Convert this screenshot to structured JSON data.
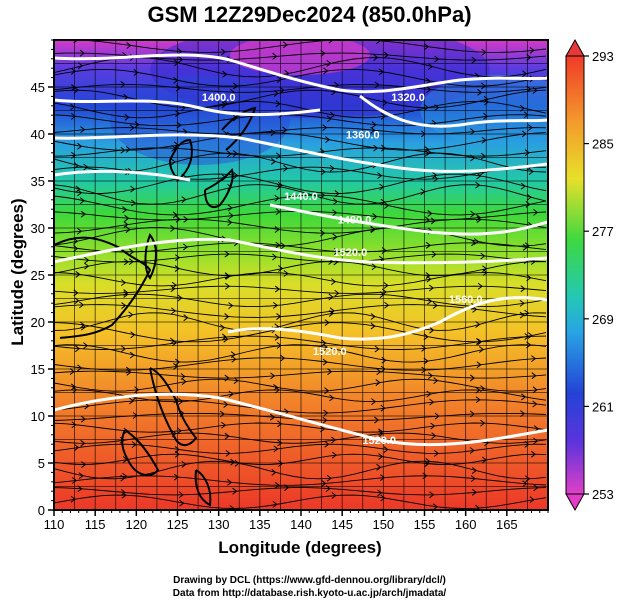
{
  "title": "GSM 12Z29Dec2024 (850.0hPa)",
  "xlabel": "Longitude (degrees)",
  "ylabel": "Latitude  (degrees)",
  "credit_line1": "Drawing by DCL (https://www.gfd-dennou.org/library/dcl/)",
  "credit_line2": "Data from http://database.rish.kyoto-u.ac.jp/arch/jmadata/",
  "x_ticks": [
    "110",
    "115",
    "120",
    "125",
    "130",
    "135",
    "140",
    "145",
    "150",
    "155",
    "160",
    "165"
  ],
  "y_ticks": [
    "0",
    "5",
    "10",
    "15",
    "20",
    "25",
    "30",
    "35",
    "40",
    "45"
  ],
  "xlim": [
    110,
    170
  ],
  "ylim": [
    0,
    50
  ],
  "colorbar": {
    "labels": [
      "293",
      "285",
      "277",
      "269",
      "261",
      "253"
    ],
    "range": [
      253,
      293
    ]
  },
  "contour_labels": [
    {
      "text": "1400.0",
      "lon": 130,
      "lat": 43.5
    },
    {
      "text": "1320.0",
      "lon": 153,
      "lat": 43.5
    },
    {
      "text": "1360.0",
      "lon": 147.5,
      "lat": 39.5
    },
    {
      "text": "1440.0",
      "lon": 140,
      "lat": 33
    },
    {
      "text": "1480.0",
      "lon": 146.5,
      "lat": 30.5
    },
    {
      "text": "1520.0",
      "lon": 146,
      "lat": 27
    },
    {
      "text": "1520.0",
      "lon": 143.5,
      "lat": 16.5
    },
    {
      "text": "1520.0",
      "lon": 149.5,
      "lat": 7
    },
    {
      "text": "1560.0",
      "lon": 160,
      "lat": 22
    }
  ]
}
